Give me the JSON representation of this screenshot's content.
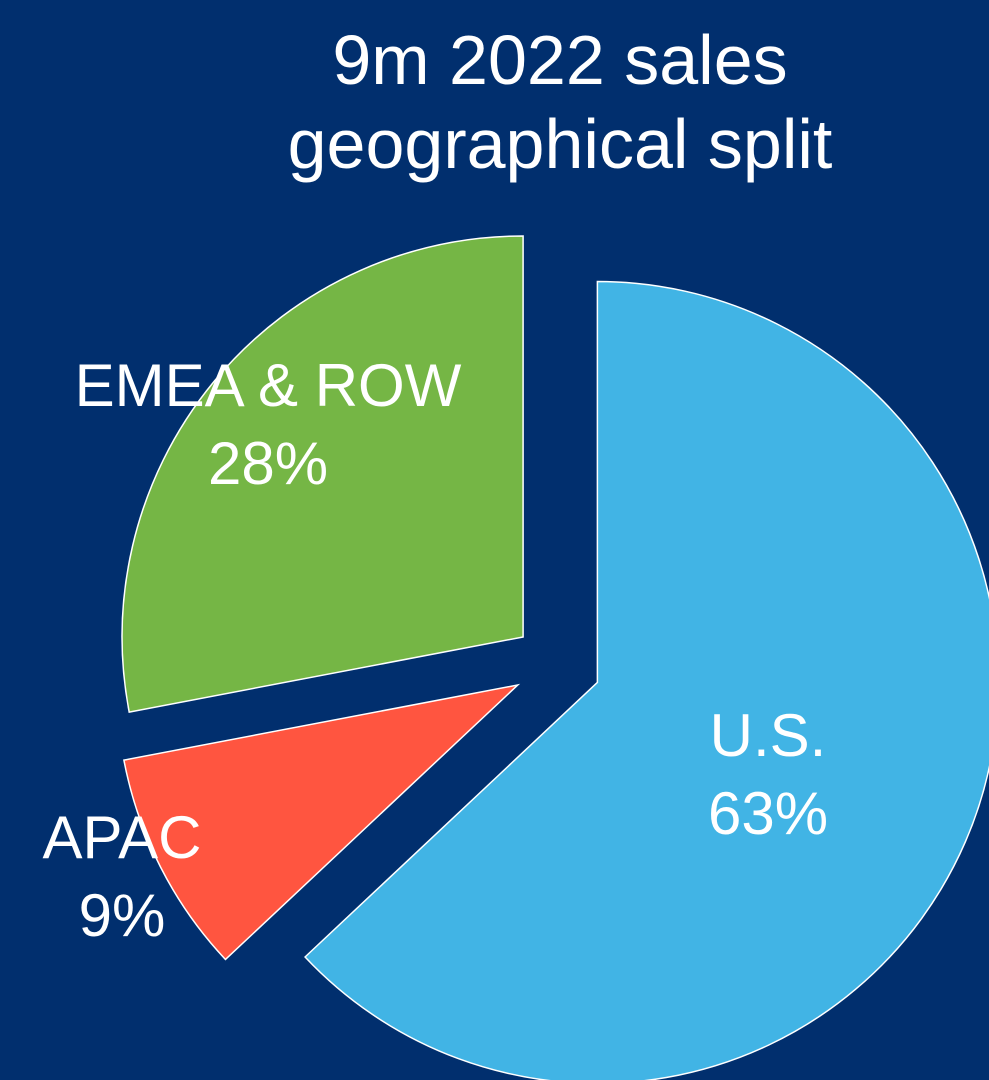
{
  "chart_data": {
    "type": "pie",
    "title": "9m 2022 sales geographical split",
    "categories": [
      "U.S.",
      "APAC",
      "EMEA & ROW"
    ],
    "values": [
      63,
      9,
      28
    ],
    "value_labels": [
      "63%",
      "9%",
      "28%"
    ],
    "colors": [
      "#41b4e5",
      "#ff5540",
      "#75b645"
    ]
  }
}
